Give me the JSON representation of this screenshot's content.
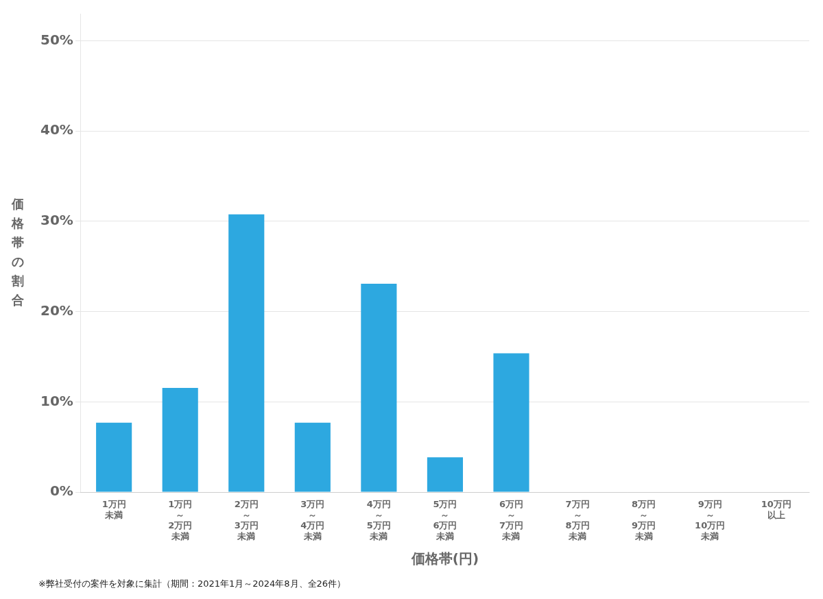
{
  "chart_data": {
    "type": "bar",
    "categories": [
      [
        "1万円",
        "未満"
      ],
      [
        "1万円",
        "～",
        "2万円",
        "未満"
      ],
      [
        "2万円",
        "～",
        "3万円",
        "未満"
      ],
      [
        "3万円",
        "～",
        "4万円",
        "未満"
      ],
      [
        "4万円",
        "～",
        "5万円",
        "未満"
      ],
      [
        "5万円",
        "～",
        "6万円",
        "未満"
      ],
      [
        "6万円",
        "～",
        "7万円",
        "未満"
      ],
      [
        "7万円",
        "～",
        "8万円",
        "未満"
      ],
      [
        "8万円",
        "～",
        "9万円",
        "未満"
      ],
      [
        "9万円",
        "～",
        "10万円",
        "未満"
      ],
      [
        "10万円",
        "以上"
      ]
    ],
    "values": [
      0.07692,
      0.11538,
      0.30769,
      0.07692,
      0.23077,
      0.03846,
      0.15385,
      0.0,
      0.0,
      0.0,
      0.0
    ],
    "color": "#2da8e0",
    "x_label": "価格帯(円)",
    "y_label": "価格帯の割合",
    "ylim": [
      0,
      0.53
    ],
    "yticks": [
      {
        "value": 0.0,
        "label": "0%"
      },
      {
        "value": 0.1,
        "label": "10%"
      },
      {
        "value": 0.2,
        "label": "20%"
      },
      {
        "value": 0.3,
        "label": "30%"
      },
      {
        "value": 0.4,
        "label": "40%"
      },
      {
        "value": 0.5,
        "label": "50%"
      }
    ],
    "grid": true,
    "footnote": "※弊社受付の案件を対象に集計（期間：2021年1月～2024年8月、全26件）"
  }
}
